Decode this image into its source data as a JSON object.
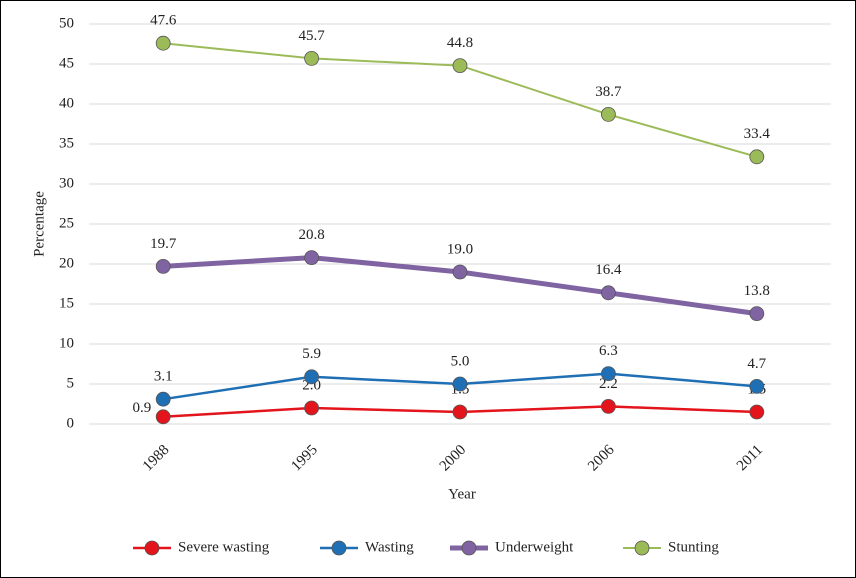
{
  "chart_data": {
    "type": "line",
    "x_label": "Year",
    "y_label": "Percentage",
    "categories": [
      "1988",
      "1995",
      "2000",
      "2006",
      "2011"
    ],
    "series": [
      {
        "name": "Severe wasting",
        "color": "#e3141b",
        "values": [
          0.9,
          2.0,
          1.5,
          2.2,
          1.5
        ],
        "value_labels": [
          "0.9",
          "2.0",
          "1.5",
          "2.2",
          "1.5"
        ]
      },
      {
        "name": "Wasting",
        "color": "#1f6fb4",
        "values": [
          3.1,
          5.9,
          5.0,
          6.3,
          4.7
        ],
        "value_labels": [
          "3.1",
          "5.9",
          "5.0",
          "6.3",
          "4.7"
        ]
      },
      {
        "name": "Underweight",
        "color": "#8064a2",
        "values": [
          19.7,
          20.8,
          19.0,
          16.4,
          13.8
        ],
        "value_labels": [
          "19.7",
          "20.8",
          "19.0",
          "16.4",
          "13.8"
        ]
      },
      {
        "name": "Stunting",
        "color": "#9bbb59",
        "values": [
          47.6,
          45.7,
          44.8,
          38.7,
          33.4
        ],
        "value_labels": [
          "47.6",
          "45.7",
          "44.8",
          "38.7",
          "33.4"
        ]
      }
    ],
    "ylim": [
      0,
      50
    ],
    "yticks": [
      0,
      5,
      10,
      15,
      20,
      25,
      30,
      35,
      40,
      45,
      50
    ],
    "grid": true,
    "legend": "bottom"
  }
}
